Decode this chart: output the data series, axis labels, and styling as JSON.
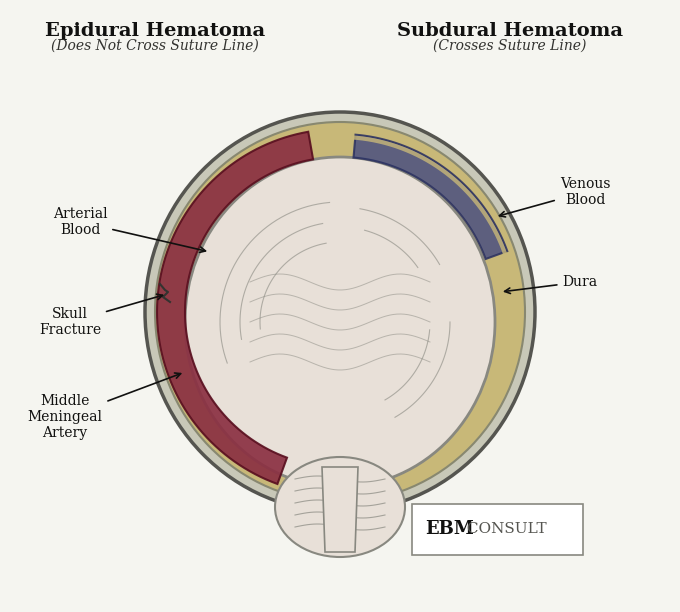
{
  "title_left": "Epidural Hematoma",
  "subtitle_left": "(Does Not Cross Suture Line)",
  "title_right": "Subdural Hematoma",
  "subtitle_right": "(Crosses Suture Line)",
  "label_arterial": "Arterial\nBlood",
  "label_skull": "Skull\nFracture",
  "label_middle": "Middle\nMeningeal\nArtery",
  "label_venous": "Venous\nBlood",
  "label_dura": "Dura",
  "watermark_bold": "EBM",
  "watermark_normal": " CONSULT",
  "bg_color": "#f5f5f0",
  "arterial_color": "#8B3042",
  "venous_color": "#4A5080",
  "dura_color": "#C8B878",
  "skull_color": "#C8C8B8",
  "brain_color": "#E8E0D8",
  "brain_outline": "#888880"
}
